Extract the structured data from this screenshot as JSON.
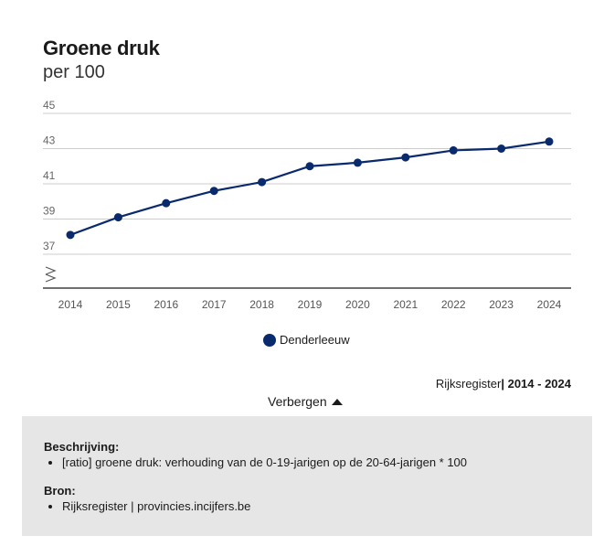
{
  "title": "Groene druk",
  "subtitle": "per 100",
  "chart_data": {
    "type": "line",
    "x": [
      "2014",
      "2015",
      "2016",
      "2017",
      "2018",
      "2019",
      "2020",
      "2021",
      "2022",
      "2023",
      "2024"
    ],
    "series": [
      {
        "name": "Denderleeuw",
        "color": "#0a2a6e",
        "values": [
          38.1,
          39.1,
          39.9,
          40.6,
          41.1,
          42.0,
          42.2,
          42.5,
          42.9,
          43.0,
          43.4
        ]
      }
    ],
    "yticks": [
      "45",
      "43",
      "41",
      "39",
      "37"
    ],
    "ylim": [
      35,
      45
    ],
    "axis_break": true,
    "grid": true
  },
  "legend": {
    "label": "Denderleeuw",
    "color": "#0a2a6e"
  },
  "source": {
    "name": "Rijksregister",
    "period": "2014 - 2024"
  },
  "toggle_label": "Verbergen",
  "info": {
    "description_title": "Beschrijving:",
    "description_item": "[ratio] groene druk: verhouding van de 0-19-jarigen op de 20-64-jarigen * 100",
    "source_title": "Bron:",
    "source_item": "Rijksregister | provincies.incijfers.be"
  }
}
